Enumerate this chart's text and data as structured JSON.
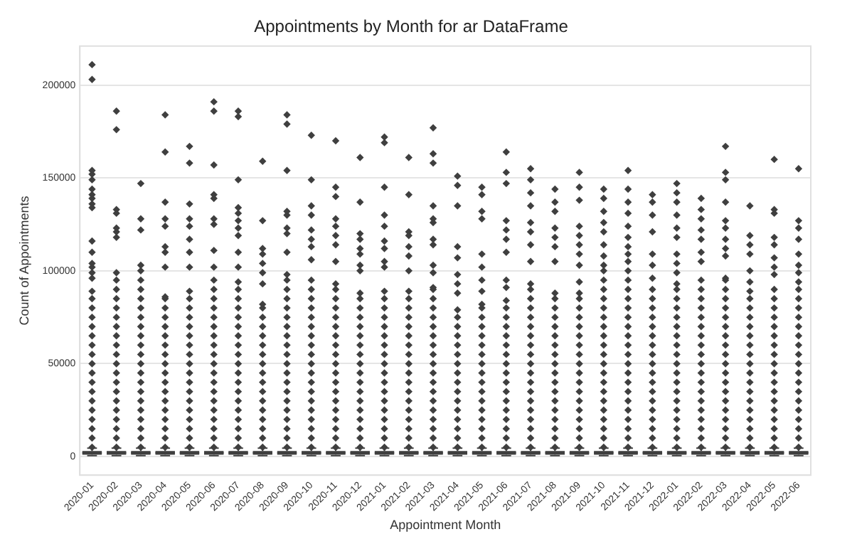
{
  "chart_data": {
    "type": "box",
    "title": "Appointments by Month for ar DataFrame",
    "xlabel": "Appointment Month",
    "ylabel": "Count of Appointments",
    "color": "#3f3f3f",
    "grid": "y",
    "ylim": [
      -10000,
      221000
    ],
    "yticks": [
      0,
      50000,
      100000,
      150000,
      200000
    ],
    "categories": [
      "2020-01",
      "2020-02",
      "2020-03",
      "2020-04",
      "2020-05",
      "2020-06",
      "2020-07",
      "2020-08",
      "2020-09",
      "2020-10",
      "2020-11",
      "2020-12",
      "2021-01",
      "2021-02",
      "2021-03",
      "2021-04",
      "2021-05",
      "2021-06",
      "2021-07",
      "2021-08",
      "2021-09",
      "2021-10",
      "2021-11",
      "2021-12",
      "2022-01",
      "2022-02",
      "2022-03",
      "2022-04",
      "2022-05",
      "2022-06"
    ],
    "boxes": [
      {
        "low": 500,
        "q1": 1000,
        "median": 2000,
        "q3": 3000,
        "high": 4500,
        "outliers": [
          5000,
          10000,
          15000,
          20000,
          25000,
          30000,
          35000,
          40000,
          45000,
          50000,
          55000,
          60000,
          65000,
          70000,
          75000,
          80000,
          85000,
          89000,
          96000,
          99000,
          102000,
          104000,
          110000,
          116000,
          134000,
          136000,
          139000,
          141000,
          144000,
          149000,
          152000,
          154000,
          203000,
          211000
        ]
      },
      {
        "low": 500,
        "q1": 1000,
        "median": 2000,
        "q3": 3000,
        "high": 4500,
        "outliers": [
          5000,
          10000,
          15000,
          20000,
          25000,
          30000,
          35000,
          40000,
          45000,
          50000,
          55000,
          60000,
          65000,
          70000,
          75000,
          80000,
          85000,
          90000,
          95000,
          99000,
          118000,
          121000,
          123000,
          131000,
          133000,
          176000,
          186000
        ]
      },
      {
        "low": 500,
        "q1": 1000,
        "median": 2000,
        "q3": 3000,
        "high": 4500,
        "outliers": [
          5000,
          10000,
          15000,
          20000,
          25000,
          30000,
          35000,
          40000,
          45000,
          50000,
          55000,
          60000,
          65000,
          70000,
          75000,
          80000,
          85000,
          90000,
          95000,
          100000,
          103000,
          122000,
          128000,
          147000
        ]
      },
      {
        "low": 500,
        "q1": 1000,
        "median": 2000,
        "q3": 3000,
        "high": 4500,
        "outliers": [
          5000,
          10000,
          15000,
          20000,
          25000,
          30000,
          35000,
          40000,
          45000,
          50000,
          55000,
          60000,
          65000,
          70000,
          75000,
          80000,
          85000,
          86000,
          102000,
          110000,
          113000,
          124000,
          128000,
          137000,
          164000,
          184000
        ]
      },
      {
        "low": 500,
        "q1": 1000,
        "median": 2000,
        "q3": 3000,
        "high": 4500,
        "outliers": [
          5000,
          10000,
          15000,
          20000,
          25000,
          30000,
          35000,
          40000,
          45000,
          50000,
          55000,
          60000,
          65000,
          70000,
          75000,
          80000,
          85000,
          89000,
          102000,
          110000,
          117000,
          124000,
          128000,
          136000,
          158000,
          167000
        ]
      },
      {
        "low": 500,
        "q1": 1000,
        "median": 2000,
        "q3": 3000,
        "high": 4500,
        "outliers": [
          5000,
          10000,
          15000,
          20000,
          25000,
          30000,
          35000,
          40000,
          45000,
          50000,
          55000,
          60000,
          65000,
          70000,
          75000,
          80000,
          85000,
          90000,
          95000,
          102000,
          111000,
          125000,
          128000,
          139000,
          141000,
          157000,
          186000,
          191000
        ]
      },
      {
        "low": 500,
        "q1": 1000,
        "median": 2000,
        "q3": 3000,
        "high": 4500,
        "outliers": [
          5000,
          10000,
          15000,
          20000,
          25000,
          30000,
          35000,
          40000,
          45000,
          50000,
          55000,
          60000,
          65000,
          70000,
          75000,
          80000,
          85000,
          90000,
          94000,
          102000,
          110000,
          119000,
          123000,
          127000,
          131000,
          134000,
          149000,
          183000,
          186000
        ]
      },
      {
        "low": 500,
        "q1": 1000,
        "median": 2000,
        "q3": 3000,
        "high": 4500,
        "outliers": [
          5000,
          10000,
          15000,
          20000,
          25000,
          30000,
          35000,
          40000,
          45000,
          50000,
          55000,
          60000,
          65000,
          70000,
          75000,
          80000,
          82000,
          93000,
          99000,
          104000,
          109000,
          112000,
          127000,
          159000
        ]
      },
      {
        "low": 500,
        "q1": 1000,
        "median": 2000,
        "q3": 3000,
        "high": 4500,
        "outliers": [
          5000,
          10000,
          15000,
          20000,
          25000,
          30000,
          35000,
          40000,
          45000,
          50000,
          55000,
          60000,
          65000,
          70000,
          75000,
          80000,
          85000,
          90000,
          95000,
          98000,
          110000,
          120000,
          123000,
          130000,
          132000,
          154000,
          179000,
          184000
        ]
      },
      {
        "low": 500,
        "q1": 1000,
        "median": 2000,
        "q3": 3000,
        "high": 4500,
        "outliers": [
          5000,
          10000,
          15000,
          20000,
          25000,
          30000,
          35000,
          40000,
          45000,
          50000,
          55000,
          60000,
          65000,
          70000,
          75000,
          80000,
          85000,
          90000,
          95000,
          106000,
          113000,
          117000,
          122000,
          130000,
          135000,
          149000,
          173000
        ]
      },
      {
        "low": 500,
        "q1": 1000,
        "median": 2000,
        "q3": 3000,
        "high": 4500,
        "outliers": [
          5000,
          10000,
          15000,
          20000,
          25000,
          30000,
          35000,
          40000,
          45000,
          50000,
          55000,
          60000,
          65000,
          70000,
          75000,
          80000,
          85000,
          90000,
          93000,
          105000,
          114000,
          119000,
          124000,
          128000,
          140000,
          145000,
          170000
        ]
      },
      {
        "low": 500,
        "q1": 1000,
        "median": 2000,
        "q3": 3000,
        "high": 4500,
        "outliers": [
          5000,
          10000,
          15000,
          20000,
          25000,
          30000,
          35000,
          40000,
          45000,
          50000,
          55000,
          60000,
          65000,
          70000,
          75000,
          80000,
          85000,
          88000,
          100000,
          103000,
          109000,
          112000,
          117000,
          120000,
          137000,
          161000
        ]
      },
      {
        "low": 500,
        "q1": 1000,
        "median": 2000,
        "q3": 3000,
        "high": 4500,
        "outliers": [
          5000,
          10000,
          15000,
          20000,
          25000,
          30000,
          35000,
          40000,
          45000,
          50000,
          55000,
          60000,
          65000,
          70000,
          75000,
          80000,
          85000,
          89000,
          102000,
          105000,
          112000,
          116000,
          124000,
          130000,
          145000,
          169000,
          172000
        ]
      },
      {
        "low": 500,
        "q1": 1000,
        "median": 2000,
        "q3": 3000,
        "high": 4500,
        "outliers": [
          5000,
          10000,
          15000,
          20000,
          25000,
          30000,
          35000,
          40000,
          45000,
          50000,
          55000,
          60000,
          65000,
          70000,
          75000,
          80000,
          85000,
          89000,
          100000,
          108000,
          113000,
          119000,
          121000,
          141000,
          161000
        ]
      },
      {
        "low": 500,
        "q1": 1000,
        "median": 2000,
        "q3": 3000,
        "high": 4500,
        "outliers": [
          5000,
          10000,
          15000,
          20000,
          25000,
          30000,
          35000,
          40000,
          45000,
          50000,
          55000,
          60000,
          65000,
          70000,
          75000,
          80000,
          85000,
          90000,
          91000,
          99000,
          103000,
          114000,
          117000,
          126000,
          128000,
          135000,
          158000,
          163000,
          177000
        ]
      },
      {
        "low": 500,
        "q1": 1000,
        "median": 2000,
        "q3": 3000,
        "high": 4500,
        "outliers": [
          5000,
          10000,
          15000,
          20000,
          25000,
          30000,
          35000,
          40000,
          45000,
          50000,
          55000,
          60000,
          65000,
          70000,
          75000,
          79000,
          88000,
          93000,
          98000,
          107000,
          113000,
          135000,
          146000,
          151000
        ]
      },
      {
        "low": 500,
        "q1": 1000,
        "median": 2000,
        "q3": 3000,
        "high": 4500,
        "outliers": [
          5000,
          10000,
          15000,
          20000,
          25000,
          30000,
          35000,
          40000,
          45000,
          50000,
          55000,
          60000,
          65000,
          70000,
          75000,
          80000,
          82000,
          89000,
          95000,
          102000,
          109000,
          128000,
          132000,
          141000,
          145000
        ]
      },
      {
        "low": 500,
        "q1": 1000,
        "median": 2000,
        "q3": 3000,
        "high": 4500,
        "outliers": [
          5000,
          10000,
          15000,
          20000,
          25000,
          30000,
          35000,
          40000,
          45000,
          50000,
          55000,
          60000,
          65000,
          70000,
          75000,
          80000,
          84000,
          91000,
          95000,
          110000,
          117000,
          122000,
          127000,
          147000,
          153000,
          164000
        ]
      },
      {
        "low": 500,
        "q1": 1000,
        "median": 2000,
        "q3": 3000,
        "high": 4500,
        "outliers": [
          5000,
          10000,
          15000,
          20000,
          25000,
          30000,
          35000,
          40000,
          45000,
          50000,
          55000,
          60000,
          65000,
          70000,
          75000,
          80000,
          85000,
          90000,
          93000,
          105000,
          114000,
          121000,
          126000,
          135000,
          142000,
          149000,
          155000
        ]
      },
      {
        "low": 500,
        "q1": 1000,
        "median": 2000,
        "q3": 3000,
        "high": 4500,
        "outliers": [
          5000,
          10000,
          15000,
          20000,
          25000,
          30000,
          35000,
          40000,
          45000,
          50000,
          55000,
          60000,
          65000,
          70000,
          75000,
          80000,
          85000,
          88000,
          105000,
          113000,
          118000,
          123000,
          132000,
          137000,
          144000
        ]
      },
      {
        "low": 500,
        "q1": 1000,
        "median": 2000,
        "q3": 3000,
        "high": 4500,
        "outliers": [
          5000,
          10000,
          15000,
          20000,
          25000,
          30000,
          35000,
          40000,
          45000,
          50000,
          55000,
          60000,
          65000,
          70000,
          75000,
          80000,
          85000,
          88000,
          94000,
          103000,
          109000,
          114000,
          119000,
          124000,
          138000,
          145000,
          153000
        ]
      },
      {
        "low": 500,
        "q1": 1000,
        "median": 2000,
        "q3": 3000,
        "high": 4500,
        "outliers": [
          5000,
          10000,
          15000,
          20000,
          25000,
          30000,
          35000,
          40000,
          45000,
          50000,
          55000,
          60000,
          65000,
          70000,
          75000,
          80000,
          85000,
          90000,
          95000,
          100000,
          103000,
          108000,
          114000,
          121000,
          126000,
          132000,
          139000,
          144000
        ]
      },
      {
        "low": 500,
        "q1": 1000,
        "median": 2000,
        "q3": 3000,
        "high": 4500,
        "outliers": [
          5000,
          10000,
          15000,
          20000,
          25000,
          30000,
          35000,
          40000,
          45000,
          50000,
          55000,
          60000,
          65000,
          70000,
          75000,
          80000,
          85000,
          90000,
          95000,
          100000,
          105000,
          109000,
          113000,
          118000,
          124000,
          131000,
          137000,
          144000,
          154000
        ]
      },
      {
        "low": 500,
        "q1": 1000,
        "median": 2000,
        "q3": 3000,
        "high": 4500,
        "outliers": [
          5000,
          10000,
          15000,
          20000,
          25000,
          30000,
          35000,
          40000,
          45000,
          50000,
          55000,
          60000,
          65000,
          70000,
          75000,
          80000,
          85000,
          90000,
          96000,
          103000,
          109000,
          121000,
          130000,
          137000,
          141000
        ]
      },
      {
        "low": 500,
        "q1": 1000,
        "median": 2000,
        "q3": 3000,
        "high": 4500,
        "outliers": [
          5000,
          10000,
          15000,
          20000,
          25000,
          30000,
          35000,
          40000,
          45000,
          50000,
          55000,
          60000,
          65000,
          70000,
          75000,
          80000,
          85000,
          90000,
          93000,
          99000,
          104000,
          109000,
          118000,
          123000,
          130000,
          137000,
          142000,
          147000
        ]
      },
      {
        "low": 500,
        "q1": 1000,
        "median": 2000,
        "q3": 3000,
        "high": 4500,
        "outliers": [
          5000,
          10000,
          15000,
          20000,
          25000,
          30000,
          35000,
          40000,
          45000,
          50000,
          55000,
          60000,
          65000,
          70000,
          75000,
          80000,
          85000,
          90000,
          95000,
          105000,
          110000,
          117000,
          122000,
          128000,
          133000,
          139000
        ]
      },
      {
        "low": 500,
        "q1": 1000,
        "median": 2000,
        "q3": 3000,
        "high": 4500,
        "outliers": [
          5000,
          10000,
          15000,
          20000,
          25000,
          30000,
          35000,
          40000,
          45000,
          50000,
          55000,
          60000,
          65000,
          70000,
          75000,
          80000,
          85000,
          90000,
          95000,
          96000,
          108000,
          112000,
          117000,
          123000,
          127000,
          137000,
          149000,
          153000,
          167000
        ]
      },
      {
        "low": 500,
        "q1": 1000,
        "median": 2000,
        "q3": 3000,
        "high": 4500,
        "outliers": [
          5000,
          10000,
          15000,
          20000,
          25000,
          30000,
          35000,
          40000,
          45000,
          50000,
          55000,
          60000,
          65000,
          70000,
          75000,
          80000,
          85000,
          89000,
          94000,
          100000,
          109000,
          114000,
          119000,
          135000
        ]
      },
      {
        "low": 500,
        "q1": 1000,
        "median": 2000,
        "q3": 3000,
        "high": 4500,
        "outliers": [
          5000,
          10000,
          15000,
          20000,
          25000,
          30000,
          35000,
          40000,
          45000,
          50000,
          55000,
          60000,
          65000,
          70000,
          75000,
          80000,
          85000,
          90000,
          98000,
          102000,
          107000,
          114000,
          118000,
          131000,
          133000,
          160000
        ]
      },
      {
        "low": 500,
        "q1": 1000,
        "median": 2000,
        "q3": 3000,
        "high": 4500,
        "outliers": [
          5000,
          10000,
          15000,
          20000,
          25000,
          30000,
          35000,
          40000,
          45000,
          50000,
          55000,
          60000,
          65000,
          70000,
          75000,
          80000,
          85000,
          90000,
          94000,
          99000,
          103000,
          109000,
          117000,
          123000,
          127000,
          155000
        ]
      }
    ]
  }
}
